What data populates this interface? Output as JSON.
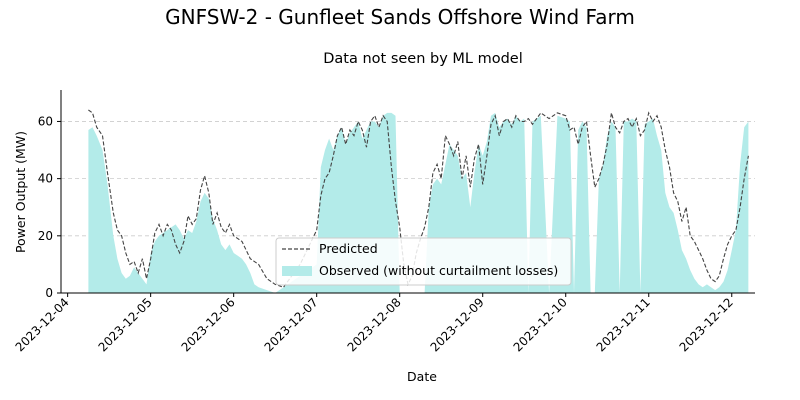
{
  "chart_data": {
    "type": "area",
    "title": "GNFSW-2 - Gunfleet Sands Offshore Wind Farm",
    "subtitle": "Data not seen by ML model",
    "xlabel": "Date",
    "ylabel": "Power Output (MW)",
    "x_ticks": [
      "2023-12-04",
      "2023-12-05",
      "2023-12-06",
      "2023-12-07",
      "2023-12-08",
      "2023-12-09",
      "2023-12-10",
      "2023-12-11",
      "2023-12-12"
    ],
    "xlim": [
      -0.08,
      8.28
    ],
    "ylim": [
      0,
      71
    ],
    "y_ticks": [
      0,
      20,
      40,
      60
    ],
    "grid": "horizontal-dashed",
    "legend_position": "lower-center",
    "colors": {
      "observed": "#b3ebe9",
      "predicted": "#444444"
    },
    "series": [
      {
        "name": "Predicted",
        "style": "dashed-line",
        "points": [
          [
            0.25,
            64
          ],
          [
            0.3,
            63
          ],
          [
            0.35,
            58
          ],
          [
            0.42,
            55
          ],
          [
            0.48,
            42
          ],
          [
            0.55,
            28
          ],
          [
            0.6,
            22
          ],
          [
            0.65,
            20
          ],
          [
            0.7,
            14
          ],
          [
            0.75,
            10
          ],
          [
            0.8,
            11
          ],
          [
            0.85,
            7
          ],
          [
            0.9,
            12
          ],
          [
            0.95,
            5
          ],
          [
            1.0,
            12
          ],
          [
            1.05,
            21
          ],
          [
            1.1,
            24
          ],
          [
            1.15,
            20
          ],
          [
            1.2,
            24
          ],
          [
            1.25,
            22
          ],
          [
            1.3,
            17
          ],
          [
            1.35,
            14
          ],
          [
            1.4,
            18
          ],
          [
            1.45,
            27
          ],
          [
            1.5,
            24
          ],
          [
            1.55,
            26
          ],
          [
            1.6,
            36
          ],
          [
            1.65,
            41
          ],
          [
            1.7,
            35
          ],
          [
            1.75,
            24
          ],
          [
            1.8,
            28
          ],
          [
            1.85,
            23
          ],
          [
            1.9,
            21
          ],
          [
            1.95,
            24
          ],
          [
            2.0,
            20
          ],
          [
            2.1,
            18
          ],
          [
            2.2,
            12
          ],
          [
            2.3,
            10
          ],
          [
            2.4,
            5
          ],
          [
            2.5,
            3
          ],
          [
            2.6,
            2
          ],
          [
            2.7,
            6
          ],
          [
            2.8,
            10
          ],
          [
            2.9,
            16
          ],
          [
            3.0,
            22
          ],
          [
            3.05,
            34
          ],
          [
            3.1,
            40
          ],
          [
            3.15,
            42
          ],
          [
            3.2,
            48
          ],
          [
            3.25,
            55
          ],
          [
            3.3,
            58
          ],
          [
            3.35,
            52
          ],
          [
            3.4,
            57
          ],
          [
            3.45,
            55
          ],
          [
            3.5,
            60
          ],
          [
            3.55,
            57
          ],
          [
            3.6,
            51
          ],
          [
            3.65,
            60
          ],
          [
            3.7,
            62
          ],
          [
            3.75,
            58
          ],
          [
            3.8,
            62
          ],
          [
            3.85,
            60
          ],
          [
            3.9,
            44
          ],
          [
            3.95,
            32
          ],
          [
            4.0,
            23
          ],
          [
            4.05,
            10
          ],
          [
            4.1,
            3
          ],
          [
            4.15,
            6
          ],
          [
            4.2,
            14
          ],
          [
            4.25,
            19
          ],
          [
            4.3,
            23
          ],
          [
            4.35,
            30
          ],
          [
            4.4,
            42
          ],
          [
            4.45,
            45
          ],
          [
            4.5,
            40
          ],
          [
            4.55,
            55
          ],
          [
            4.6,
            52
          ],
          [
            4.65,
            48
          ],
          [
            4.7,
            53
          ],
          [
            4.75,
            40
          ],
          [
            4.8,
            48
          ],
          [
            4.85,
            37
          ],
          [
            4.9,
            47
          ],
          [
            4.95,
            52
          ],
          [
            5.0,
            38
          ],
          [
            5.05,
            48
          ],
          [
            5.1,
            59
          ],
          [
            5.15,
            62
          ],
          [
            5.2,
            55
          ],
          [
            5.25,
            60
          ],
          [
            5.3,
            61
          ],
          [
            5.35,
            58
          ],
          [
            5.4,
            62
          ],
          [
            5.45,
            60
          ],
          [
            5.5,
            60
          ],
          [
            5.55,
            61
          ],
          [
            5.6,
            59
          ],
          [
            5.7,
            63
          ],
          [
            5.8,
            61
          ],
          [
            5.9,
            63
          ],
          [
            6.0,
            62
          ],
          [
            6.05,
            57
          ],
          [
            6.1,
            58
          ],
          [
            6.15,
            52
          ],
          [
            6.2,
            58
          ],
          [
            6.25,
            60
          ],
          [
            6.3,
            48
          ],
          [
            6.35,
            37
          ],
          [
            6.4,
            40
          ],
          [
            6.45,
            45
          ],
          [
            6.5,
            52
          ],
          [
            6.55,
            63
          ],
          [
            6.6,
            58
          ],
          [
            6.65,
            56
          ],
          [
            6.7,
            60
          ],
          [
            6.75,
            61
          ],
          [
            6.8,
            58
          ],
          [
            6.85,
            61
          ],
          [
            6.9,
            55
          ],
          [
            6.95,
            57
          ],
          [
            7.0,
            63
          ],
          [
            7.05,
            60
          ],
          [
            7.1,
            62
          ],
          [
            7.15,
            58
          ],
          [
            7.2,
            50
          ],
          [
            7.25,
            44
          ],
          [
            7.3,
            35
          ],
          [
            7.35,
            32
          ],
          [
            7.4,
            25
          ],
          [
            7.45,
            30
          ],
          [
            7.5,
            20
          ],
          [
            7.55,
            18
          ],
          [
            7.6,
            15
          ],
          [
            7.65,
            12
          ],
          [
            7.7,
            8
          ],
          [
            7.75,
            5
          ],
          [
            7.8,
            4
          ],
          [
            7.85,
            6
          ],
          [
            7.9,
            12
          ],
          [
            7.95,
            17
          ],
          [
            8.0,
            20
          ],
          [
            8.05,
            22
          ],
          [
            8.1,
            30
          ],
          [
            8.15,
            40
          ],
          [
            8.2,
            48
          ]
        ]
      },
      {
        "name": "Observed (without curtailment losses)",
        "style": "filled-area",
        "points": [
          [
            0.25,
            57
          ],
          [
            0.3,
            58
          ],
          [
            0.35,
            55
          ],
          [
            0.42,
            50
          ],
          [
            0.48,
            38
          ],
          [
            0.55,
            20
          ],
          [
            0.6,
            12
          ],
          [
            0.65,
            7
          ],
          [
            0.7,
            5
          ],
          [
            0.75,
            6
          ],
          [
            0.8,
            9
          ],
          [
            0.85,
            7
          ],
          [
            0.9,
            5
          ],
          [
            0.95,
            3
          ],
          [
            1.0,
            14
          ],
          [
            1.05,
            18
          ],
          [
            1.1,
            20
          ],
          [
            1.15,
            21
          ],
          [
            1.2,
            22
          ],
          [
            1.25,
            23
          ],
          [
            1.3,
            24
          ],
          [
            1.35,
            22
          ],
          [
            1.4,
            19
          ],
          [
            1.45,
            22
          ],
          [
            1.5,
            21
          ],
          [
            1.55,
            25
          ],
          [
            1.6,
            32
          ],
          [
            1.65,
            35
          ],
          [
            1.7,
            33
          ],
          [
            1.75,
            26
          ],
          [
            1.8,
            22
          ],
          [
            1.85,
            17
          ],
          [
            1.9,
            15
          ],
          [
            1.95,
            17
          ],
          [
            2.0,
            14
          ],
          [
            2.05,
            13
          ],
          [
            2.1,
            12
          ],
          [
            2.15,
            10
          ],
          [
            2.2,
            7
          ],
          [
            2.25,
            3
          ],
          [
            2.3,
            2
          ],
          [
            2.4,
            1
          ],
          [
            2.5,
            0
          ],
          [
            3.0,
            10
          ],
          [
            3.05,
            44
          ],
          [
            3.1,
            50
          ],
          [
            3.15,
            54
          ],
          [
            3.2,
            50
          ],
          [
            3.25,
            55
          ],
          [
            3.3,
            58
          ],
          [
            3.35,
            52
          ],
          [
            3.4,
            56
          ],
          [
            3.45,
            58
          ],
          [
            3.5,
            60
          ],
          [
            3.55,
            54
          ],
          [
            3.6,
            57
          ],
          [
            3.65,
            60
          ],
          [
            3.7,
            60
          ],
          [
            3.75,
            58
          ],
          [
            3.8,
            62
          ],
          [
            3.85,
            63
          ],
          [
            3.9,
            63
          ],
          [
            3.95,
            62
          ],
          [
            4.0,
            0
          ],
          [
            4.1,
            0
          ],
          [
            4.2,
            0
          ],
          [
            4.25,
            0
          ],
          [
            4.3,
            0
          ],
          [
            4.35,
            30
          ],
          [
            4.4,
            38
          ],
          [
            4.45,
            40
          ],
          [
            4.5,
            38
          ],
          [
            4.55,
            45
          ],
          [
            4.6,
            52
          ],
          [
            4.65,
            50
          ],
          [
            4.7,
            48
          ],
          [
            4.75,
            40
          ],
          [
            4.8,
            42
          ],
          [
            4.85,
            30
          ],
          [
            4.9,
            42
          ],
          [
            4.95,
            52
          ],
          [
            5.0,
            48
          ],
          [
            5.05,
            53
          ],
          [
            5.1,
            62
          ],
          [
            5.15,
            63
          ],
          [
            5.2,
            58
          ],
          [
            5.25,
            60
          ],
          [
            5.3,
            61
          ],
          [
            5.35,
            59
          ],
          [
            5.4,
            62
          ],
          [
            5.45,
            60
          ],
          [
            5.5,
            61
          ],
          [
            5.55,
            0
          ],
          [
            5.6,
            60
          ],
          [
            5.7,
            62
          ],
          [
            5.8,
            0
          ],
          [
            5.9,
            62
          ],
          [
            6.0,
            61
          ],
          [
            6.05,
            60
          ],
          [
            6.1,
            0
          ],
          [
            6.15,
            57
          ],
          [
            6.2,
            60
          ],
          [
            6.25,
            58
          ],
          [
            6.3,
            0
          ],
          [
            6.35,
            0
          ],
          [
            6.4,
            40
          ],
          [
            6.45,
            45
          ],
          [
            6.5,
            55
          ],
          [
            6.55,
            60
          ],
          [
            6.6,
            58
          ],
          [
            6.65,
            0
          ],
          [
            6.7,
            60
          ],
          [
            6.75,
            60
          ],
          [
            6.8,
            61
          ],
          [
            6.85,
            60
          ],
          [
            6.9,
            0
          ],
          [
            6.95,
            59
          ],
          [
            7.0,
            60
          ],
          [
            7.05,
            61
          ],
          [
            7.1,
            55
          ],
          [
            7.15,
            50
          ],
          [
            7.2,
            35
          ],
          [
            7.25,
            30
          ],
          [
            7.3,
            28
          ],
          [
            7.35,
            22
          ],
          [
            7.4,
            15
          ],
          [
            7.45,
            12
          ],
          [
            7.5,
            8
          ],
          [
            7.55,
            5
          ],
          [
            7.6,
            3
          ],
          [
            7.65,
            2
          ],
          [
            7.7,
            3
          ],
          [
            7.75,
            2
          ],
          [
            7.8,
            1
          ],
          [
            7.85,
            2
          ],
          [
            7.9,
            4
          ],
          [
            7.95,
            8
          ],
          [
            8.0,
            15
          ],
          [
            8.05,
            22
          ],
          [
            8.1,
            45
          ],
          [
            8.15,
            58
          ],
          [
            8.2,
            60
          ]
        ]
      }
    ]
  }
}
